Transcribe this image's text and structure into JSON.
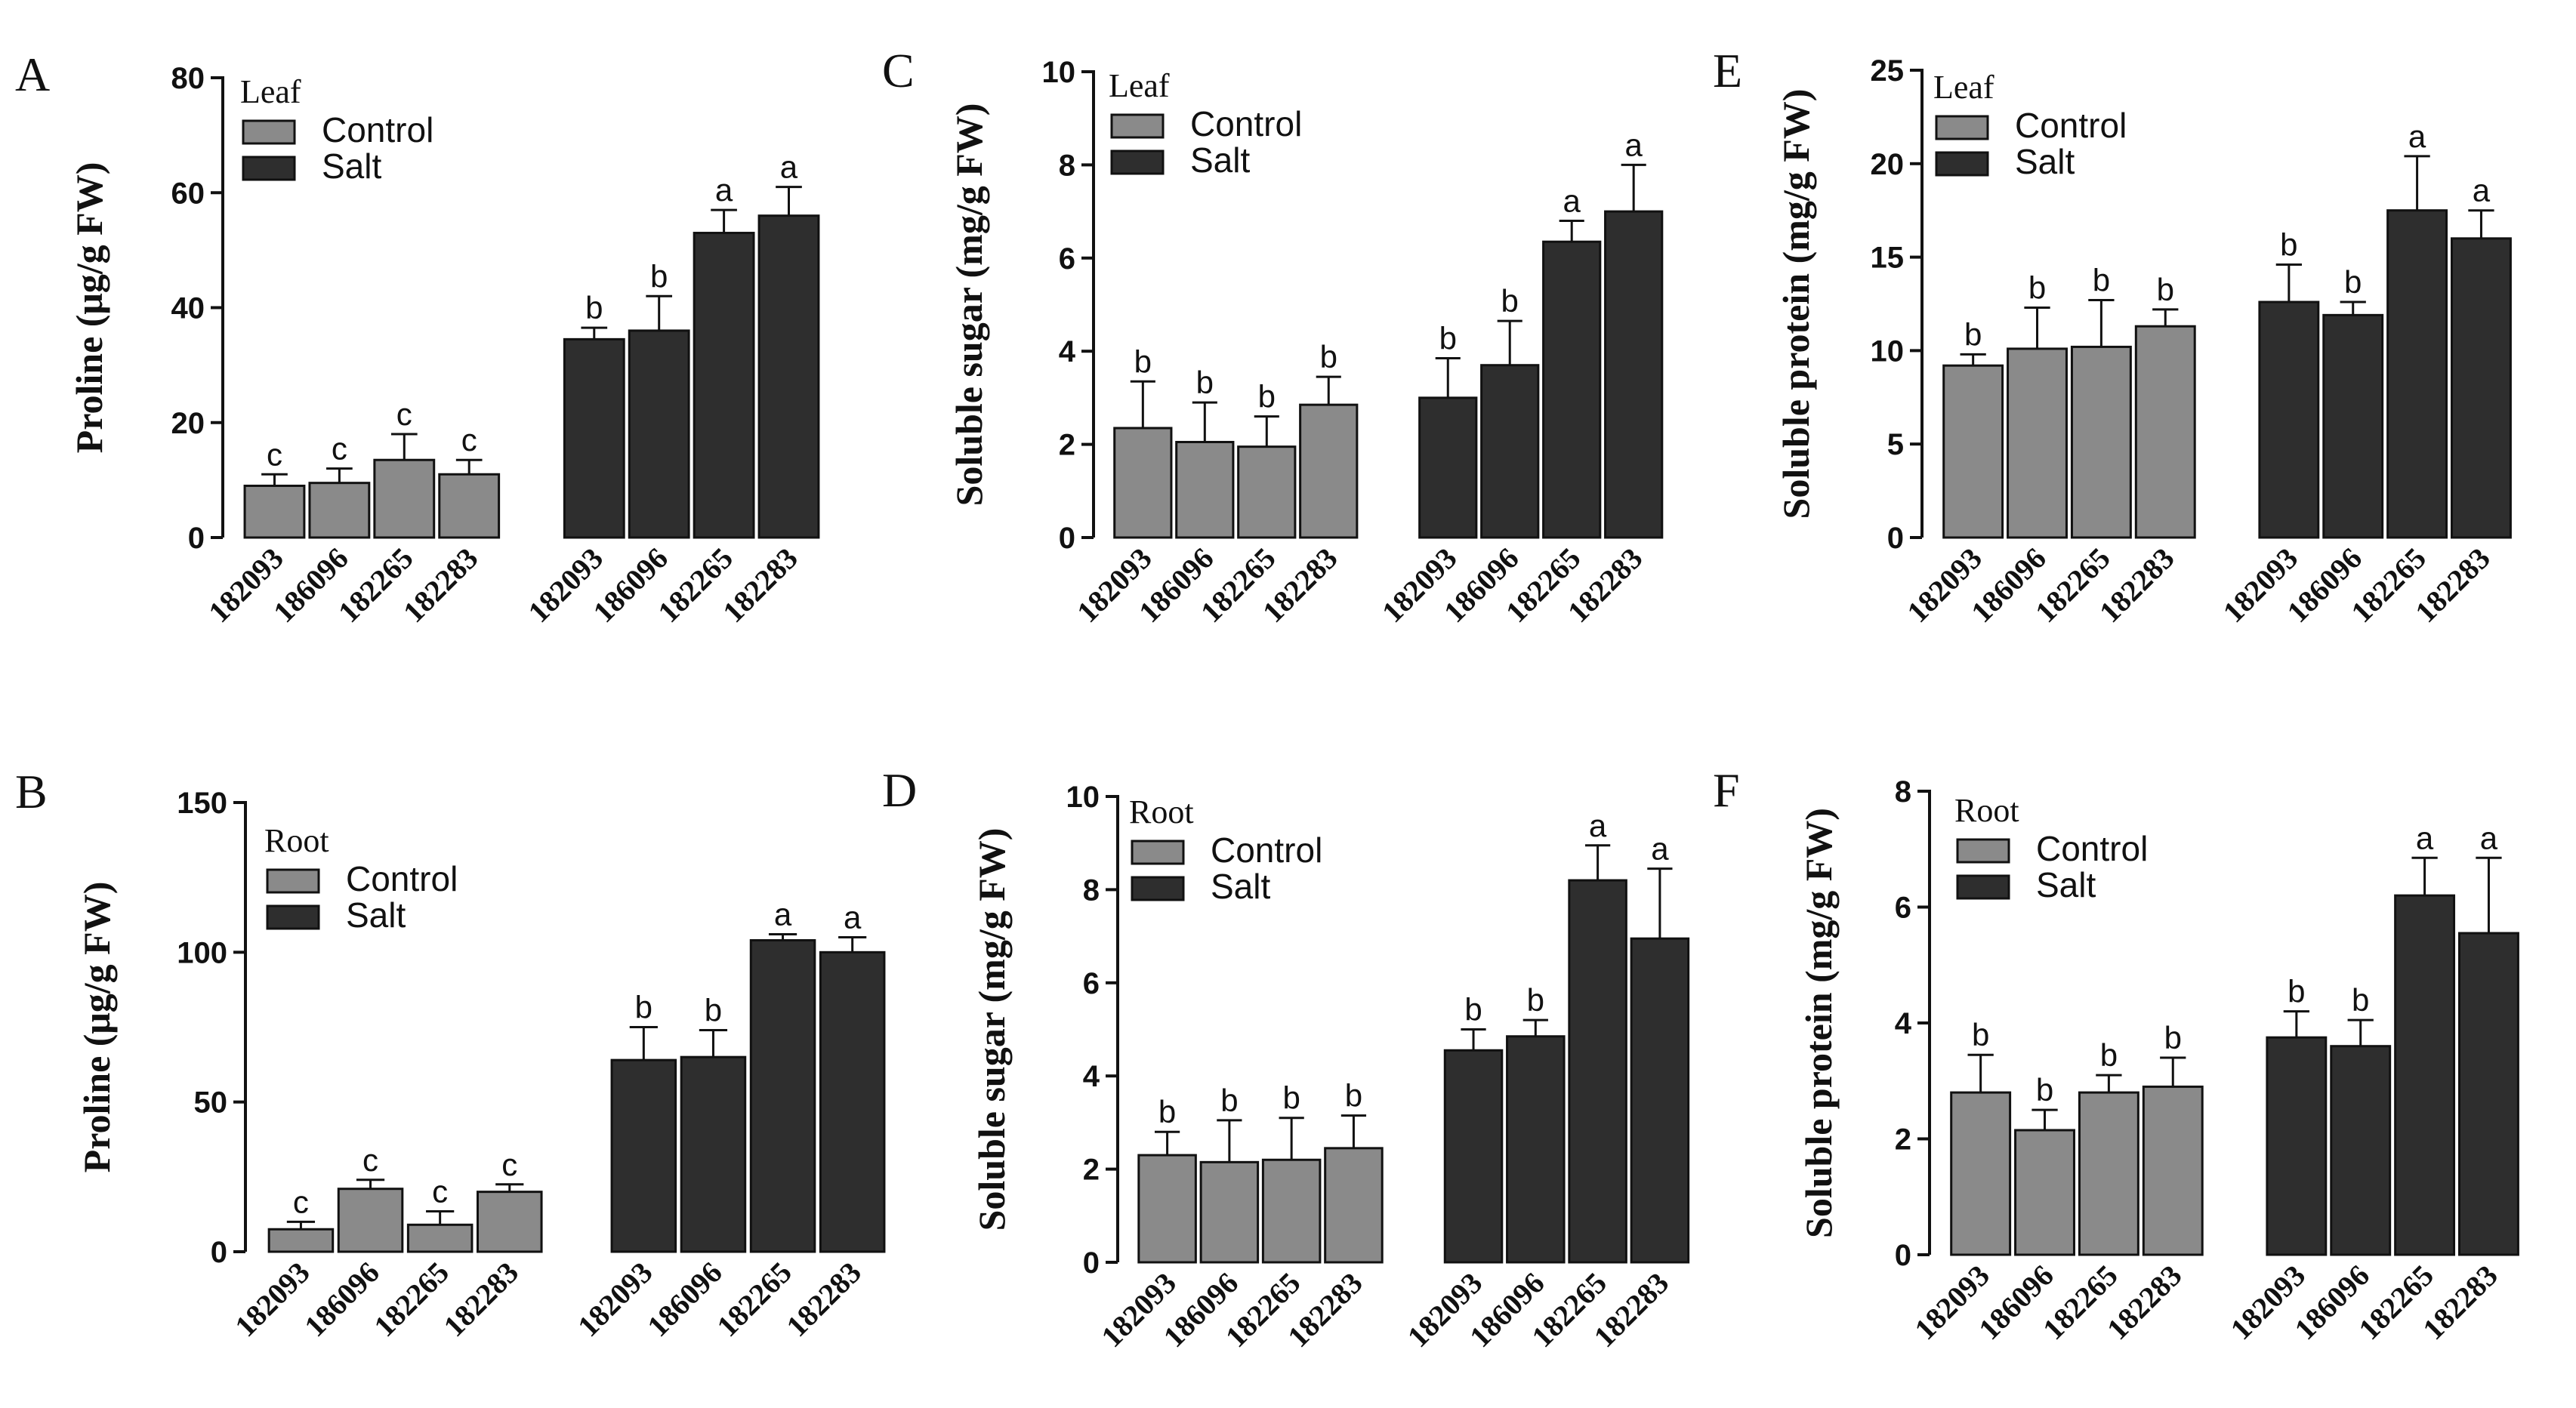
{
  "colors": {
    "control": "#8a8a8a",
    "salt": "#2e2e2e",
    "axis": "#111111"
  },
  "legend": {
    "control": "Control",
    "salt": "Salt"
  },
  "chart_data": [
    {
      "panel": "A",
      "type": "bar",
      "tissue": "Leaf",
      "ylabel": "Proline (μg/g FW)",
      "ylim": [
        0,
        80
      ],
      "yticks": [
        0,
        20,
        40,
        60,
        80
      ],
      "categories": [
        "182093",
        "186096",
        "182265",
        "182283"
      ],
      "series": [
        {
          "name": "Control",
          "values": [
            9,
            9.5,
            13.5,
            11
          ],
          "errors": [
            2,
            2.5,
            4.5,
            2.5
          ],
          "letters": [
            "c",
            "c",
            "c",
            "c"
          ]
        },
        {
          "name": "Salt",
          "values": [
            34.5,
            36,
            53,
            56
          ],
          "errors": [
            2,
            6,
            4,
            5
          ],
          "letters": [
            "b",
            "b",
            "a",
            "a"
          ]
        }
      ]
    },
    {
      "panel": "B",
      "type": "bar",
      "tissue": "Root",
      "ylabel": "Proline (μg/g FW)",
      "ylim": [
        0,
        150
      ],
      "yticks": [
        0,
        50,
        100,
        150
      ],
      "categories": [
        "182093",
        "186096",
        "182265",
        "182283"
      ],
      "series": [
        {
          "name": "Control",
          "values": [
            7.5,
            21,
            9,
            20
          ],
          "errors": [
            2.5,
            3,
            4.5,
            2.5
          ],
          "letters": [
            "c",
            "c",
            "c",
            "c"
          ]
        },
        {
          "name": "Salt",
          "values": [
            64,
            65,
            104,
            100
          ],
          "errors": [
            11,
            9,
            2,
            5
          ],
          "letters": [
            "b",
            "b",
            "a",
            "a"
          ]
        }
      ]
    },
    {
      "panel": "C",
      "type": "bar",
      "tissue": "Leaf",
      "ylabel": "Soluble sugar (mg/g FW)",
      "ylim": [
        0,
        10
      ],
      "yticks": [
        0,
        2,
        4,
        6,
        8,
        10
      ],
      "categories": [
        "182093",
        "186096",
        "182265",
        "182283"
      ],
      "series": [
        {
          "name": "Control",
          "values": [
            2.35,
            2.05,
            1.95,
            2.85
          ],
          "errors": [
            1.0,
            0.85,
            0.65,
            0.6
          ],
          "letters": [
            "b",
            "b",
            "b",
            "b"
          ]
        },
        {
          "name": "Salt",
          "values": [
            3.0,
            3.7,
            6.35,
            7.0
          ],
          "errors": [
            0.85,
            0.95,
            0.45,
            1.0
          ],
          "letters": [
            "b",
            "b",
            "a",
            "a"
          ]
        }
      ]
    },
    {
      "panel": "D",
      "type": "bar",
      "tissue": "Root",
      "ylabel": "Soluble sugar (mg/g FW)",
      "ylim": [
        0,
        10
      ],
      "yticks": [
        0,
        2,
        4,
        6,
        8,
        10
      ],
      "categories": [
        "182093",
        "186096",
        "182265",
        "182283"
      ],
      "series": [
        {
          "name": "Control",
          "values": [
            2.3,
            2.15,
            2.2,
            2.45
          ],
          "errors": [
            0.5,
            0.9,
            0.9,
            0.7
          ],
          "letters": [
            "b",
            "b",
            "b",
            "b"
          ]
        },
        {
          "name": "Salt",
          "values": [
            4.55,
            4.85,
            8.2,
            6.95
          ],
          "errors": [
            0.45,
            0.35,
            0.75,
            1.5
          ],
          "letters": [
            "b",
            "b",
            "a",
            "a"
          ]
        }
      ]
    },
    {
      "panel": "E",
      "type": "bar",
      "tissue": "Leaf",
      "ylabel": "Soluble protein (mg/g FW)",
      "ylim": [
        0,
        25
      ],
      "yticks": [
        0,
        5,
        10,
        15,
        20,
        25
      ],
      "categories": [
        "182093",
        "186096",
        "182265",
        "182283"
      ],
      "series": [
        {
          "name": "Control",
          "values": [
            9.2,
            10.1,
            10.2,
            11.3
          ],
          "errors": [
            0.6,
            2.2,
            2.5,
            0.9
          ],
          "letters": [
            "b",
            "b",
            "b",
            "b"
          ]
        },
        {
          "name": "Salt",
          "values": [
            12.6,
            11.9,
            17.5,
            16.0
          ],
          "errors": [
            2.0,
            0.7,
            2.9,
            1.5
          ],
          "letters": [
            "b",
            "b",
            "a",
            "a"
          ]
        }
      ]
    },
    {
      "panel": "F",
      "type": "bar",
      "tissue": "Root",
      "ylabel": "Soluble protein (mg/g FW)",
      "ylim": [
        0,
        8
      ],
      "yticks": [
        0,
        2,
        4,
        6,
        8
      ],
      "categories": [
        "182093",
        "186096",
        "182265",
        "182283"
      ],
      "series": [
        {
          "name": "Control",
          "values": [
            2.8,
            2.15,
            2.8,
            2.9
          ],
          "errors": [
            0.65,
            0.35,
            0.3,
            0.5
          ],
          "letters": [
            "b",
            "b",
            "b",
            "b"
          ]
        },
        {
          "name": "Salt",
          "values": [
            3.75,
            3.6,
            6.2,
            5.55
          ],
          "errors": [
            0.45,
            0.45,
            0.65,
            1.3
          ],
          "letters": [
            "b",
            "b",
            "a",
            "a"
          ]
        }
      ]
    }
  ]
}
